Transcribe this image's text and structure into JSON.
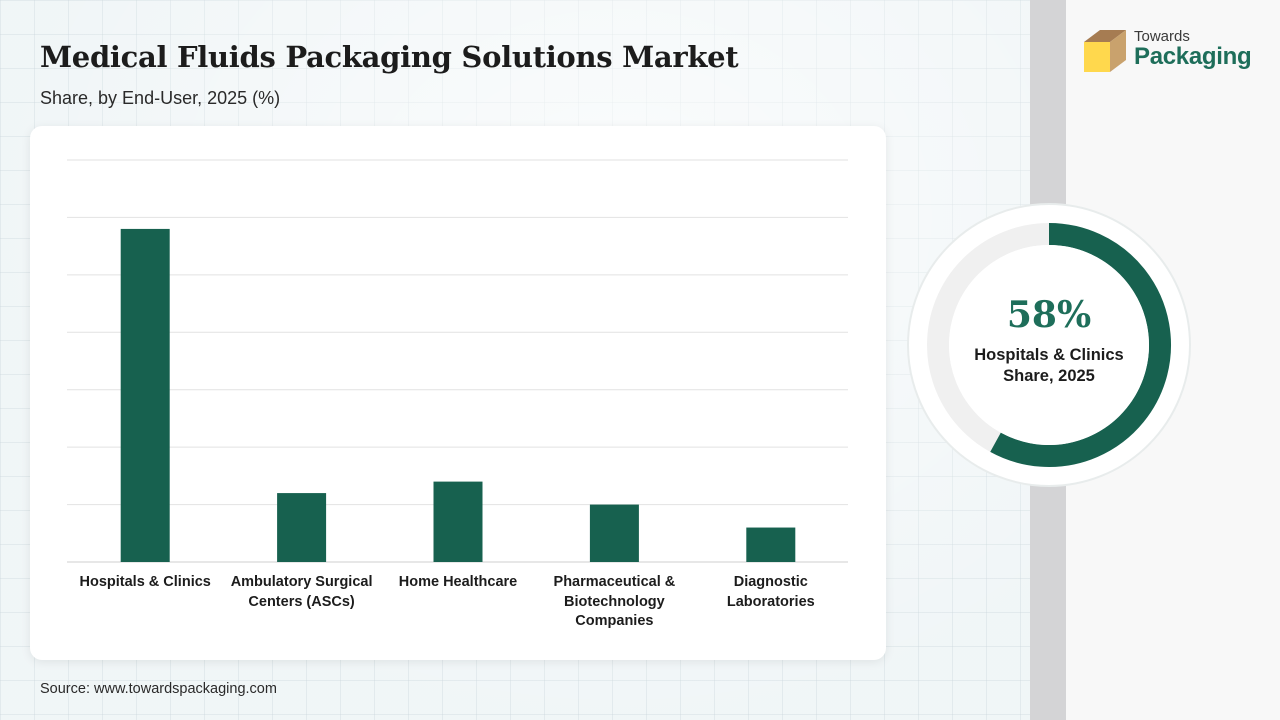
{
  "header": {
    "title": "Medical Fluids Packaging Solutions Market",
    "subtitle": "Share, by End-User, 2025 (%)"
  },
  "source": "Source: www.towardspackaging.com",
  "logo": {
    "line1": "Towards",
    "line2": "Packaging",
    "colors": {
      "box_top": "#a67c52",
      "box_side": "#ffd84d",
      "accent": "#1e6e5a"
    }
  },
  "chart_data": [
    {
      "type": "bar",
      "categories": [
        "Hospitals & Clinics",
        "Ambulatory Surgical\nCenters (ASCs)",
        "Home Healthcare",
        "Pharmaceutical &\nBiotechnology\nCompanies",
        "Diagnostic\nLaboratories"
      ],
      "values": [
        58,
        12,
        14,
        10,
        6
      ],
      "ylim": [
        0,
        70
      ],
      "grid": true,
      "grid_lines": 7,
      "bar_color": "#17614f"
    },
    {
      "type": "pie",
      "value": 58,
      "value_label": "58%",
      "label": "Hospitals & Clinics\nShare, 2025",
      "colors": {
        "filled": "#17614f",
        "track": "#f0f0f0",
        "ring": "#e8ecec"
      }
    }
  ]
}
